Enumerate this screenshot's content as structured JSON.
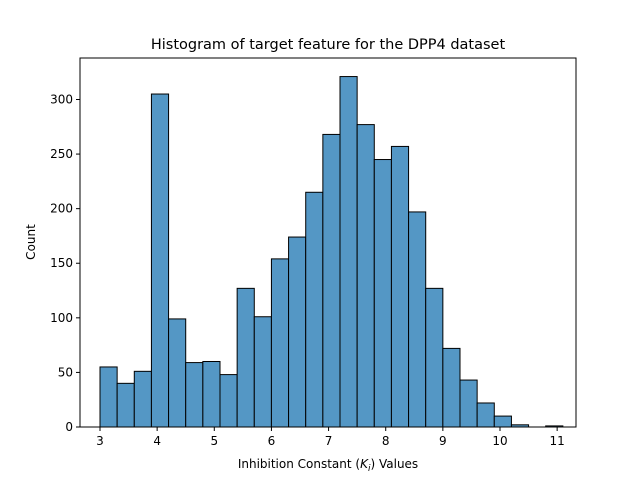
{
  "chart_data": {
    "type": "bar",
    "title": "Histogram of target feature for the DPP4 dataset",
    "xlabel_prefix": "Inhibition Constant (",
    "xlabel_symbol": "K",
    "xlabel_subscript": "i",
    "xlabel_suffix": ") Values",
    "ylabel": "Count",
    "xlim": [
      2.65,
      11.33
    ],
    "ylim": [
      0,
      338
    ],
    "xticks": [
      "3",
      "4",
      "5",
      "6",
      "7",
      "8",
      "9",
      "10",
      "11"
    ],
    "yticks": [
      "0",
      "50",
      "100",
      "150",
      "200",
      "250",
      "300"
    ],
    "bin_start": 3.0,
    "bin_width": 0.3,
    "values": [
      55,
      40,
      51,
      305,
      99,
      59,
      60,
      48,
      127,
      101,
      154,
      174,
      215,
      268,
      321,
      277,
      245,
      257,
      197,
      127,
      72,
      43,
      22,
      10,
      2,
      0,
      1
    ],
    "bar_color": "#5497c5",
    "edge_color": "#000000",
    "grid": false,
    "legend": "none"
  }
}
